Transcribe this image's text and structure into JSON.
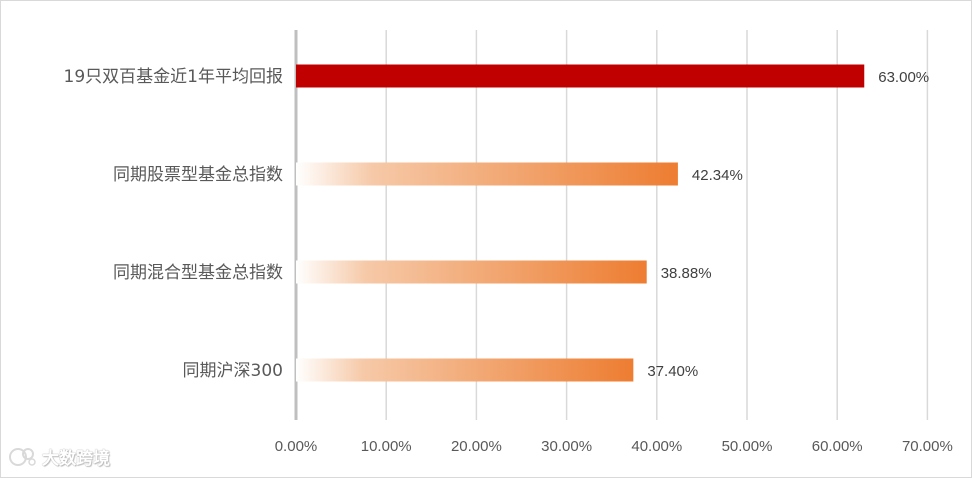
{
  "chart_data": {
    "type": "bar",
    "orientation": "horizontal",
    "categories": [
      "19只双百基金近1年平均回报",
      "同期股票型基金总指数",
      "同期混合型基金总指数",
      "同期沪深300"
    ],
    "values": [
      63.0,
      42.34,
      38.88,
      37.4
    ],
    "value_labels": [
      "63.00%",
      "42.34%",
      "38.88%",
      "37.40%"
    ],
    "xlim": [
      0,
      70
    ],
    "xticks": [
      "0.00%",
      "10.00%",
      "20.00%",
      "30.00%",
      "40.00%",
      "50.00%",
      "60.00%",
      "70.00%"
    ],
    "grid": true,
    "colors": {
      "highlight": "#c00000",
      "gradient_start": "#ffffff",
      "gradient_end": "#ed7d31"
    }
  },
  "watermark": {
    "text": "大数跨境"
  }
}
